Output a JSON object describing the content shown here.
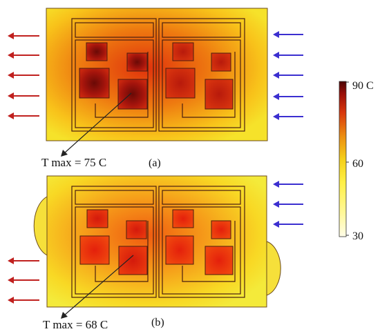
{
  "panel_a": {
    "caption": "(a)",
    "tmax_label": "T max = 75 C"
  },
  "panel_b": {
    "caption": "(b)",
    "tmax_label": "T max = 68 C"
  },
  "colorbar": {
    "ticks": [
      "90 C",
      "60",
      "30"
    ],
    "colors": [
      "#fffde0",
      "#fff04a",
      "#f7d21a",
      "#ec8a10",
      "#d62a0a",
      "#8a0a0a",
      "#4a0505"
    ]
  },
  "colors": {
    "outflow_arrow": "#c0201e",
    "inflow_arrow": "#3b2fd0",
    "outline": "#4a1e10"
  }
}
